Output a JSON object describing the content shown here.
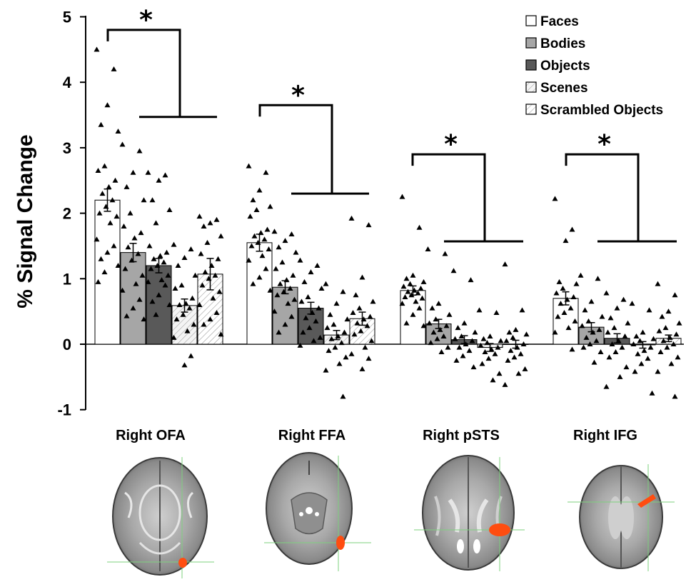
{
  "colors": {
    "faces": "#ffffff",
    "bodies": "#a6a6a6",
    "objects": "#595959",
    "scenes": "#f2f2f2",
    "scrambled": "#ffffff",
    "activation": "#ff4d10",
    "crosshair": "#7ed07e"
  },
  "chart_data": {
    "type": "bar",
    "title": "",
    "xlabel": "",
    "ylabel": "% Signal Change",
    "ylim": [
      -1,
      5
    ],
    "yticks": [
      5,
      4,
      3,
      2,
      1,
      0,
      -1
    ],
    "grid": false,
    "legend_position": "top-right",
    "categories": [
      "Right OFA",
      "Right FFA",
      "Right pSTS",
      "Right IFG"
    ],
    "series": [
      {
        "name": "Faces",
        "fill": "faces",
        "hatch": false,
        "values": [
          2.2,
          1.55,
          0.82,
          0.7
        ],
        "err": [
          0.17,
          0.13,
          0.07,
          0.1
        ]
      },
      {
        "name": "Bodies",
        "fill": "bodies",
        "hatch": false,
        "values": [
          1.4,
          0.87,
          0.31,
          0.26
        ],
        "err": [
          0.14,
          0.1,
          0.07,
          0.07
        ]
      },
      {
        "name": "Objects",
        "fill": "objects",
        "hatch": false,
        "values": [
          1.2,
          0.55,
          0.07,
          0.09
        ],
        "err": [
          0.11,
          0.09,
          0.06,
          0.07
        ]
      },
      {
        "name": "Scenes",
        "fill": "scenes",
        "hatch": true,
        "values": [
          0.59,
          0.14,
          -0.05,
          -0.01
        ],
        "err": [
          0.1,
          0.07,
          0.06,
          0.05
        ]
      },
      {
        "name": "Scrambled Objects",
        "fill": "scrambled",
        "hatch": true,
        "values": [
          1.07,
          0.39,
          0.0,
          0.09
        ],
        "err": [
          0.24,
          0.1,
          0.06,
          0.05
        ]
      }
    ],
    "points": [
      [
        [
          4.5,
          4.2,
          3.65,
          3.35,
          3.25,
          2.72,
          2.65,
          2.5,
          2.4,
          2.3,
          2.2,
          2.1,
          2.0,
          1.95,
          1.85,
          1.6,
          1.5,
          1.4,
          1.3,
          1.2,
          1.1,
          0.95
        ],
        [
          3.05,
          2.95,
          2.62,
          2.4,
          2.2,
          2.0,
          1.8,
          1.7,
          1.62,
          1.48,
          1.38,
          1.28,
          1.15,
          1.05,
          0.92,
          0.82,
          0.68,
          0.55,
          0.43,
          0.38
        ],
        [
          2.62,
          2.58,
          2.5,
          2.2,
          2.05,
          1.85,
          1.5,
          1.4,
          1.35,
          1.3,
          1.25,
          1.2,
          1.15,
          1.05,
          0.98,
          0.95,
          0.9,
          0.75,
          0.65,
          0.6,
          0.45
        ],
        [
          1.52,
          1.45,
          1.32,
          1.2,
          1.05,
          0.9,
          0.85,
          0.7,
          0.62,
          0.6,
          0.55,
          0.45,
          0.38,
          0.3,
          0.2,
          0.1,
          -0.18,
          -0.32
        ],
        [
          1.95,
          1.9,
          1.85,
          1.8,
          1.65,
          1.55,
          1.38,
          1.3,
          1.2,
          1.1,
          1.05,
          1.0,
          0.9,
          0.8,
          0.7,
          0.6,
          0.48,
          0.38,
          0.3,
          0.15
        ]
      ],
      [
        [
          2.72,
          2.62,
          2.35,
          2.2,
          2.1,
          2.05,
          1.95,
          1.75,
          1.7,
          1.65,
          1.6,
          1.55,
          1.5,
          1.45,
          1.35,
          1.28,
          1.15,
          1.02,
          0.92,
          0.82
        ],
        [
          1.72,
          1.68,
          1.58,
          1.48,
          1.4,
          1.25,
          1.15,
          1.05,
          0.98,
          0.92,
          0.85,
          0.8,
          0.75,
          0.68,
          0.62,
          0.5,
          0.42,
          0.3,
          0.18
        ],
        [
          1.28,
          1.2,
          1.1,
          0.95,
          0.85,
          0.72,
          0.65,
          0.55,
          0.48,
          0.4,
          0.35,
          0.25,
          0.18,
          0.1,
          0.05,
          -0.02
        ],
        [
          0.92,
          0.8,
          0.62,
          0.45,
          0.38,
          0.3,
          0.25,
          0.18,
          0.12,
          0.08,
          0.02,
          -0.05,
          -0.1,
          -0.2,
          -0.3,
          -0.4,
          -0.8
        ],
        [
          1.92,
          1.82,
          1.02,
          0.75,
          0.65,
          0.55,
          0.48,
          0.42,
          0.38,
          0.32,
          0.28,
          0.2,
          0.15,
          0.05,
          -0.05,
          -0.15,
          -0.22,
          -0.38
        ]
      ],
      [
        [
          2.25,
          1.78,
          1.05,
          1.0,
          0.95,
          0.92,
          0.88,
          0.85,
          0.82,
          0.8,
          0.78,
          0.75,
          0.72,
          0.7,
          0.65,
          0.62,
          0.55,
          0.45,
          0.32,
          0.28
        ],
        [
          1.45,
          1.38,
          0.62,
          0.55,
          0.45,
          0.38,
          0.32,
          0.28,
          0.22,
          0.18,
          0.12,
          0.08,
          0.02,
          -0.05,
          -0.12
        ],
        [
          1.12,
          0.98,
          0.32,
          0.25,
          0.18,
          0.12,
          0.08,
          0.05,
          0.0,
          -0.05,
          -0.1,
          -0.18,
          -0.25,
          -0.35
        ],
        [
          0.52,
          0.48,
          0.12,
          0.08,
          0.05,
          0.02,
          -0.02,
          -0.05,
          -0.08,
          -0.12,
          -0.15,
          -0.22,
          -0.3,
          -0.45,
          -0.55
        ],
        [
          1.22,
          0.52,
          0.22,
          0.18,
          0.15,
          0.1,
          0.05,
          0.0,
          -0.05,
          -0.1,
          -0.15,
          -0.2,
          -0.25,
          -0.38,
          -0.45,
          -0.62
        ]
      ],
      [
        [
          2.22,
          1.75,
          1.58,
          0.95,
          0.92,
          0.85,
          0.78,
          0.72,
          0.68,
          0.62,
          0.55,
          0.48,
          0.42,
          0.35,
          0.25,
          0.18,
          -0.08
        ],
        [
          1.05,
          1.0,
          0.65,
          0.52,
          0.42,
          0.35,
          0.28,
          0.22,
          0.18,
          0.1,
          0.05,
          0.0,
          -0.05,
          -0.12,
          -0.28
        ],
        [
          0.78,
          0.68,
          0.55,
          0.4,
          0.32,
          0.25,
          0.18,
          0.12,
          0.05,
          0.0,
          -0.05,
          -0.12,
          -0.2,
          -0.35,
          -0.5,
          -0.65
        ],
        [
          0.62,
          0.52,
          0.18,
          0.12,
          0.08,
          0.05,
          0.0,
          -0.05,
          -0.1,
          -0.15,
          -0.22,
          -0.3,
          -0.42,
          -0.75
        ],
        [
          0.92,
          0.75,
          0.5,
          0.42,
          0.32,
          0.25,
          0.2,
          0.15,
          0.1,
          0.05,
          0.0,
          -0.05,
          -0.12,
          -0.2,
          -0.3,
          -0.42,
          -0.8
        ]
      ]
    ],
    "significance": [
      {
        "label": "*",
        "left_level": 4.8,
        "right_level": 3.47
      },
      {
        "label": "*",
        "left_level": 3.65,
        "right_level": 2.3
      },
      {
        "label": "*",
        "left_level": 2.9,
        "right_level": 1.57
      },
      {
        "label": "*",
        "left_level": 2.9,
        "right_level": 1.57
      }
    ]
  }
}
